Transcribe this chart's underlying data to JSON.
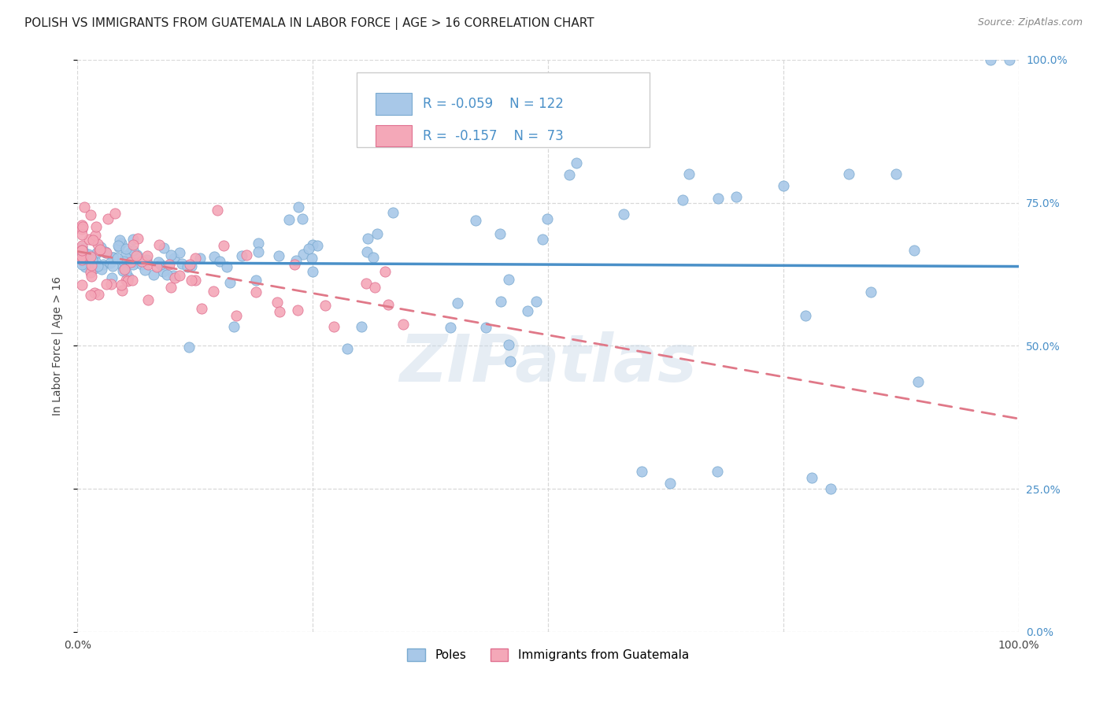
{
  "title": "POLISH VS IMMIGRANTS FROM GUATEMALA IN LABOR FORCE | AGE > 16 CORRELATION CHART",
  "source": "Source: ZipAtlas.com",
  "ylabel": "In Labor Force | Age > 16",
  "watermark": "ZIPatlas",
  "blue_R": -0.059,
  "blue_N": 122,
  "pink_R": -0.157,
  "pink_N": 73,
  "blue_color": "#a8c8e8",
  "pink_color": "#f4a8b8",
  "blue_edge_color": "#7aaad0",
  "pink_edge_color": "#e07090",
  "blue_line_color": "#4a90c8",
  "pink_line_color": "#e07888",
  "grid_color": "#d8d8d8",
  "background_color": "#ffffff",
  "right_tick_color": "#4a90c8",
  "legend_labels": [
    "Poles",
    "Immigrants from Guatemala"
  ],
  "right_axis_labels": [
    "0.0%",
    "25.0%",
    "50.0%",
    "75.0%",
    "100.0%"
  ]
}
